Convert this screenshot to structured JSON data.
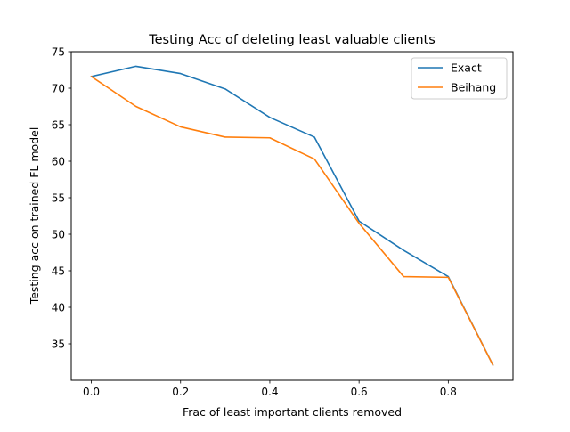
{
  "chart_data": {
    "type": "line",
    "title": "Testing Acc of deleting least valuable clients",
    "xlabel": "Frac of least important clients removed",
    "ylabel": "Testing acc on trained FL model",
    "xlim": [
      -0.045,
      0.945
    ],
    "ylim": [
      30.0,
      75.0
    ],
    "x_ticks": [
      0.0,
      0.2,
      0.4,
      0.6,
      0.8
    ],
    "x_tick_labels": [
      "0.0",
      "0.2",
      "0.4",
      "0.6",
      "0.8"
    ],
    "y_ticks": [
      35,
      40,
      45,
      50,
      55,
      60,
      65,
      70,
      75
    ],
    "y_tick_labels": [
      "35",
      "40",
      "45",
      "50",
      "55",
      "60",
      "65",
      "70",
      "75"
    ],
    "x": [
      0.0,
      0.1,
      0.2,
      0.3,
      0.4,
      0.5,
      0.6,
      0.7,
      0.8,
      0.9
    ],
    "series": [
      {
        "name": "Exact",
        "color": "#1f77b4",
        "values": [
          71.6,
          73.0,
          72.0,
          69.9,
          66.0,
          63.3,
          51.8,
          47.8,
          44.2,
          32.1
        ]
      },
      {
        "name": "Beihang",
        "color": "#ff7f0e",
        "values": [
          71.6,
          67.5,
          64.7,
          63.3,
          63.2,
          60.3,
          51.5,
          44.2,
          44.1,
          32.1
        ]
      }
    ],
    "grid": false,
    "legend_position": "upper-right"
  }
}
